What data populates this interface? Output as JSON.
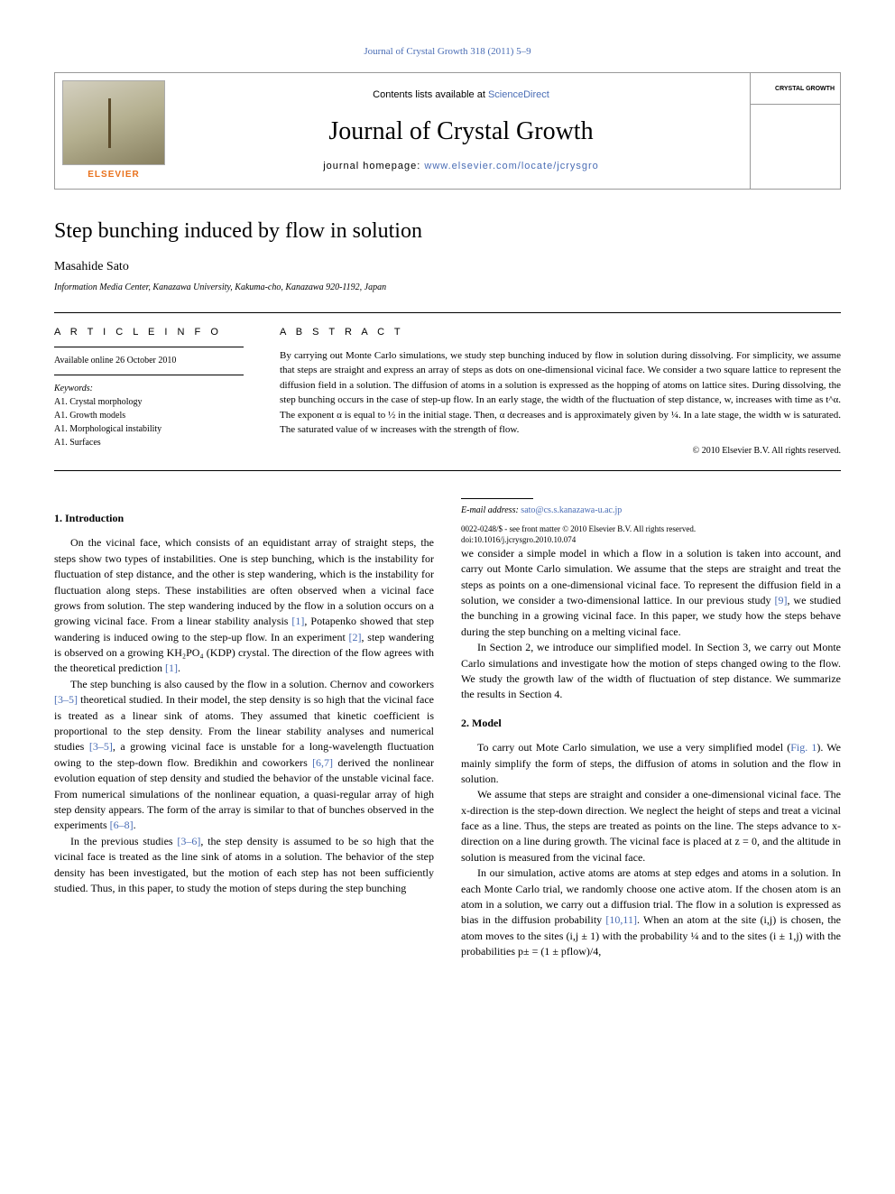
{
  "header": {
    "citation_link": "Journal of Crystal Growth 318 (2011) 5–9",
    "contents_prefix": "Contents lists available at ",
    "contents_link": "ScienceDirect",
    "journal_title": "Journal of Crystal Growth",
    "homepage_prefix": "journal homepage: ",
    "homepage_link": "www.elsevier.com/locate/jcrysgro",
    "elsevier": "ELSEVIER",
    "cover_label": "CRYSTAL GROWTH"
  },
  "article": {
    "title": "Step bunching induced by flow in solution",
    "author": "Masahide Sato",
    "affiliation": "Information Media Center, Kanazawa University, Kakuma-cho, Kanazawa 920-1192, Japan"
  },
  "info": {
    "heading": "A R T I C L E   I N F O",
    "available": "Available online 26 October 2010",
    "keywords_label": "Keywords:",
    "keywords": [
      "A1. Crystal morphology",
      "A1. Growth models",
      "A1. Morphological instability",
      "A1. Surfaces"
    ]
  },
  "abstract": {
    "heading": "A B S T R A C T",
    "text": "By carrying out Monte Carlo simulations, we study step bunching induced by flow in solution during dissolving. For simplicity, we assume that steps are straight and express an array of steps as dots on one-dimensional vicinal face. We consider a two square lattice to represent the diffusion field in a solution. The diffusion of atoms in a solution is expressed as the hopping of atoms on lattice sites. During dissolving, the step bunching occurs in the case of step-up flow. In an early stage, the width of the fluctuation of step distance, w, increases with time as t^α. The exponent α is equal to ½ in the initial stage. Then, α decreases and is approximately given by ¼. In a late stage, the width w is saturated. The saturated value of w increases with the strength of flow.",
    "copyright": "© 2010 Elsevier B.V. All rights reserved."
  },
  "sections": {
    "intro_heading": "1.  Introduction",
    "intro_p1": "On the vicinal face, which consists of an equidistant array of straight steps, the steps show two types of instabilities. One is step bunching, which is the instability for fluctuation of step distance, and the other is step wandering, which is the instability for fluctuation along steps. These instabilities are often observed when a vicinal face grows from solution. The step wandering induced by the flow in a solution occurs on a growing vicinal face. From a linear stability analysis ",
    "intro_p1_ref1": "[1]",
    "intro_p1b": ", Potapenko showed that step wandering is induced owing to the step-up flow. In an experiment ",
    "intro_p1_ref2": "[2]",
    "intro_p1c": ", step wandering is observed on a growing KH₂PO₄ (KDP) crystal. The direction of the flow agrees with the theoretical prediction ",
    "intro_p1_ref3": "[1]",
    "intro_p1d": ".",
    "intro_p2a": "The step bunching is also caused by the flow in a solution. Chernov and coworkers ",
    "intro_p2_ref1": "[3–5]",
    "intro_p2b": " theoretical studied. In their model, the step density is so high that the vicinal face is treated as a linear sink of atoms. They assumed that kinetic coefficient is proportional to the step density. From the linear stability analyses and numerical studies ",
    "intro_p2_ref2": "[3–5]",
    "intro_p2c": ", a growing vicinal face is unstable for a long-wavelength fluctuation owing to the step-down flow. Bredikhin and coworkers ",
    "intro_p2_ref3": "[6,7]",
    "intro_p2d": " derived the nonlinear evolution equation of step density and studied the behavior of the unstable vicinal face. From numerical simulations of the nonlinear equation, a quasi-regular array of high step density appears. The form of the array is similar to that of bunches observed in the experiments ",
    "intro_p2_ref4": "[6–8]",
    "intro_p2e": ".",
    "intro_p3a": "In the previous studies ",
    "intro_p3_ref1": "[3–6]",
    "intro_p3b": ", the step density is assumed to be so high that the vicinal face is treated as the line sink of atoms in a solution. The behavior of the step density has been investigated, but the motion of each step has not been sufficiently studied. Thus, in this paper, to study the motion of steps during the step bunching",
    "col2_p1a": "we consider a simple model in which a flow in a solution is taken into account, and carry out Monte Carlo simulation. We assume that the steps are straight and treat the steps as points on a one-dimensional vicinal face. To represent the diffusion field in a solution, we consider a two-dimensional lattice. In our previous study ",
    "col2_p1_ref1": "[9]",
    "col2_p1b": ", we studied the bunching in a growing vicinal face. In this paper, we study how the steps behave during the step bunching on a melting vicinal face.",
    "col2_p2": "In Section 2, we introduce our simplified model. In Section 3, we carry out Monte Carlo simulations and investigate how the motion of steps changed owing to the flow. We study the growth law of the width of fluctuation of step distance. We summarize the results in Section 4.",
    "model_heading": "2.  Model",
    "model_p1a": "To carry out Mote Carlo simulation, we use a very simplified model (",
    "model_p1_ref1": "Fig. 1",
    "model_p1b": "). We mainly simplify the form of steps, the diffusion of atoms in solution and the flow in solution.",
    "model_p2": "We assume that steps are straight and consider a one-dimensional vicinal face. The x-direction is the step-down direction. We neglect the height of steps and treat a vicinal face as a line. Thus, the steps are treated as points on the line. The steps advance to x-direction on a line during growth. The vicinal face is placed at z = 0, and the altitude in solution is measured from the vicinal face.",
    "model_p3a": "In our simulation, active atoms are atoms at step edges and atoms in a solution. In each Monte Carlo trial, we randomly choose one active atom. If the chosen atom is an atom in a solution, we carry out a diffusion trial. The flow in a solution is expressed as bias in the diffusion probability ",
    "model_p3_ref1": "[10,11]",
    "model_p3b": ". When an atom at the site (i,j) is chosen, the atom moves to the sites (i,j ± 1) with the probability ¼ and to the sites (i ± 1,j) with the probabilities p± = (1 ± pflow)/4,"
  },
  "footer": {
    "email_label": "E-mail address: ",
    "email": "sato@cs.s.kanazawa-u.ac.jp",
    "front_matter": "0022-0248/$ - see front matter © 2010 Elsevier B.V. All rights reserved.",
    "doi": "doi:10.1016/j.jcrysgro.2010.10.074"
  },
  "colors": {
    "link": "#4a6db5",
    "elsevier": "#e9711c",
    "text": "#000000",
    "background": "#ffffff"
  }
}
